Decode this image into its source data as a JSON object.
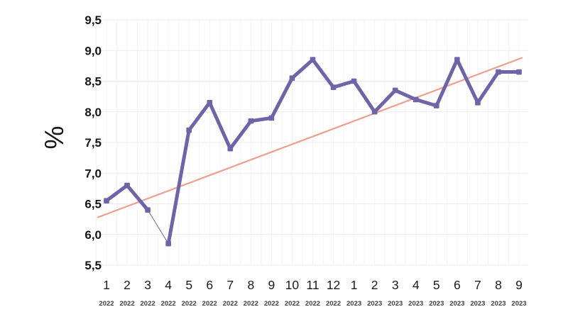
{
  "page": {
    "background": "#ffffff"
  },
  "chart_data": {
    "type": "line",
    "title": "",
    "ylabel": "%",
    "xlabel": "",
    "ylim": [
      5.5,
      9.5
    ],
    "y_tick_step": 0.5,
    "y_tick_labels": [
      "5,5",
      "6,0",
      "6,5",
      "7,0",
      "7,5",
      "8,0",
      "8,5",
      "9,0",
      "9,5"
    ],
    "decimal_separator": ",",
    "grid": true,
    "legend": "none",
    "categories": [
      {
        "month": "1",
        "year": "2022"
      },
      {
        "month": "2",
        "year": "2022"
      },
      {
        "month": "3",
        "year": "2022"
      },
      {
        "month": "4",
        "year": "2022"
      },
      {
        "month": "5",
        "year": "2022"
      },
      {
        "month": "6",
        "year": "2022"
      },
      {
        "month": "7",
        "year": "2022"
      },
      {
        "month": "8",
        "year": "2022"
      },
      {
        "month": "9",
        "year": "2022"
      },
      {
        "month": "10",
        "year": "2022"
      },
      {
        "month": "11",
        "year": "2022"
      },
      {
        "month": "12",
        "year": "2022"
      },
      {
        "month": "1",
        "year": "2023"
      },
      {
        "month": "2",
        "year": "2023"
      },
      {
        "month": "3",
        "year": "2023"
      },
      {
        "month": "4",
        "year": "2023"
      },
      {
        "month": "5",
        "year": "2023"
      },
      {
        "month": "6",
        "year": "2023"
      },
      {
        "month": "7",
        "year": "2023"
      },
      {
        "month": "8",
        "year": "2023"
      },
      {
        "month": "9",
        "year": "2023"
      }
    ],
    "series": [
      {
        "name": "monthly-percentage",
        "color": "#6f63a9",
        "marker": "square",
        "values": [
          6.55,
          6.8,
          6.4,
          5.85,
          7.7,
          8.15,
          7.4,
          7.85,
          7.9,
          8.55,
          8.85,
          8.4,
          8.5,
          8.0,
          8.35,
          8.2,
          8.1,
          8.85,
          8.15,
          8.65,
          8.65
        ]
      }
    ],
    "trend": {
      "name": "trend-line",
      "color": "#ec9f90",
      "start_value": 6.28,
      "end_value": 8.88
    },
    "connector_segment": {
      "from_index": 2,
      "to_index": 3,
      "color": "#707070",
      "width": 1
    },
    "colors": {
      "series": "#6f63a9",
      "trend": "#ec9f90",
      "grid_horizontal": "#ebebeb",
      "grid_vertical": "#f4f4f4",
      "text": "#161616",
      "year_text": "#3f3f3f"
    }
  }
}
